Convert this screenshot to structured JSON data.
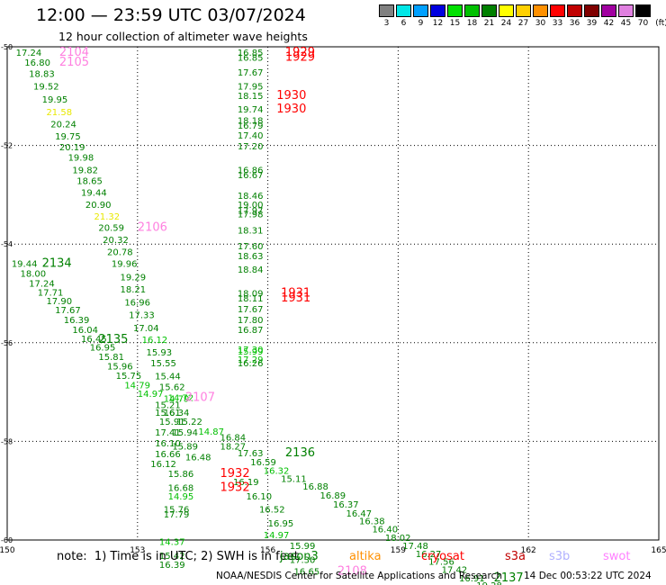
{
  "header": {
    "title": "12:00 — 23:59 UTC 03/07/2024",
    "subtitle": "12 hour collection of altimeter wave heights"
  },
  "legend": {
    "unit": "(ft)",
    "bins": [
      {
        "label": "3",
        "color": "#808080"
      },
      {
        "label": "6",
        "color": "#00e6e6"
      },
      {
        "label": "9",
        "color": "#00a0ff"
      },
      {
        "label": "12",
        "color": "#0000e0"
      },
      {
        "label": "15",
        "color": "#00e000"
      },
      {
        "label": "18",
        "color": "#00c000"
      },
      {
        "label": "21",
        "color": "#008000"
      },
      {
        "label": "24",
        "color": "#ffff00"
      },
      {
        "label": "27",
        "color": "#ffd000"
      },
      {
        "label": "30",
        "color": "#ff9000"
      },
      {
        "label": "33",
        "color": "#ff0000"
      },
      {
        "label": "36",
        "color": "#c00000"
      },
      {
        "label": "39",
        "color": "#800000"
      },
      {
        "label": "42",
        "color": "#a000a0"
      },
      {
        "label": "45",
        "color": "#e080e0"
      },
      {
        "label": "70",
        "color": "#000000"
      }
    ]
  },
  "footer": {
    "note": "note:  1) Time is in UTC; 2) SWH is in feet",
    "satellites": [
      {
        "label": "jason3",
        "color": "#008000"
      },
      {
        "label": "altika",
        "color": "#ff9000"
      },
      {
        "label": "cryosat",
        "color": "#ff0000"
      },
      {
        "label": "s3a",
        "color": "#c00000"
      },
      {
        "label": "s3b",
        "color": "#b0b0ff"
      },
      {
        "label": "swot",
        "color": "#ff80ff"
      }
    ],
    "credit": "NOAA/NESDIS Center for Satellite Applications and Research",
    "timestamp": "14 Dec 00:53:22 UTC 2024"
  },
  "chart_data": {
    "type": "scatter",
    "xlim": [
      150,
      165
    ],
    "ylim": [
      -60,
      -50
    ],
    "xticks": [
      "150",
      "153",
      "156",
      "159",
      "162",
      "165"
    ],
    "yticks": [
      "-50",
      "-52",
      "-54",
      "-56",
      "-58",
      "-60"
    ],
    "grid": true,
    "colors": {
      "g": "#008000",
      "l": "#00c000",
      "y": "#e8e800",
      "r": "#ff0000",
      "p": "#ff80e0"
    },
    "points": [
      {
        "x": 150.2,
        "y": -50.0,
        "v": "17.24",
        "c": "g"
      },
      {
        "x": 151.2,
        "y": -50.0,
        "v": "2104",
        "c": "p"
      },
      {
        "x": 150.4,
        "y": -50.2,
        "v": "16.80",
        "c": "g"
      },
      {
        "x": 151.2,
        "y": -50.2,
        "v": "2105",
        "c": "p"
      },
      {
        "x": 150.5,
        "y": -50.43,
        "v": "18.83",
        "c": "g"
      },
      {
        "x": 150.6,
        "y": -50.68,
        "v": "19.52",
        "c": "g"
      },
      {
        "x": 150.8,
        "y": -50.95,
        "v": "19.95",
        "c": "g"
      },
      {
        "x": 150.9,
        "y": -51.2,
        "v": "21.58",
        "c": "y"
      },
      {
        "x": 151.0,
        "y": -51.45,
        "v": "20.24",
        "c": "g"
      },
      {
        "x": 151.1,
        "y": -51.7,
        "v": "19.75",
        "c": "g"
      },
      {
        "x": 151.2,
        "y": -51.92,
        "v": "20.19",
        "c": "g"
      },
      {
        "x": 151.4,
        "y": -52.13,
        "v": "19.98",
        "c": "g"
      },
      {
        "x": 151.5,
        "y": -52.38,
        "v": "19.82",
        "c": "g"
      },
      {
        "x": 151.6,
        "y": -52.6,
        "v": "18.65",
        "c": "g"
      },
      {
        "x": 151.7,
        "y": -52.84,
        "v": "19.44",
        "c": "g"
      },
      {
        "x": 151.8,
        "y": -53.08,
        "v": "20.90",
        "c": "g"
      },
      {
        "x": 152.0,
        "y": -53.32,
        "v": "21.32",
        "c": "y"
      },
      {
        "x": 152.1,
        "y": -53.55,
        "v": "20.59",
        "c": "g"
      },
      {
        "x": 153.0,
        "y": -53.55,
        "v": "2106",
        "c": "p"
      },
      {
        "x": 152.2,
        "y": -53.8,
        "v": "20.32",
        "c": "g"
      },
      {
        "x": 152.3,
        "y": -54.04,
        "v": "20.78",
        "c": "g"
      },
      {
        "x": 152.4,
        "y": -54.28,
        "v": "19.96",
        "c": "g"
      },
      {
        "x": 152.6,
        "y": -54.55,
        "v": "19.29",
        "c": "g"
      },
      {
        "x": 152.6,
        "y": -54.8,
        "v": "18.21",
        "c": "g"
      },
      {
        "x": 152.7,
        "y": -55.06,
        "v": "16.96",
        "c": "g"
      },
      {
        "x": 152.8,
        "y": -55.32,
        "v": "17.33",
        "c": "g"
      },
      {
        "x": 152.9,
        "y": -55.58,
        "v": "17.04",
        "c": "g"
      },
      {
        "x": 153.1,
        "y": -55.82,
        "v": "16.12",
        "c": "l"
      },
      {
        "x": 152.1,
        "y": -55.82,
        "v": "2135",
        "c": "g"
      },
      {
        "x": 153.2,
        "y": -56.08,
        "v": "15.93",
        "c": "g"
      },
      {
        "x": 153.3,
        "y": -56.3,
        "v": "15.55",
        "c": "g"
      },
      {
        "x": 153.4,
        "y": -56.56,
        "v": "15.44",
        "c": "g"
      },
      {
        "x": 153.5,
        "y": -56.78,
        "v": "15.62",
        "c": "g"
      },
      {
        "x": 153.6,
        "y": -57.02,
        "v": "14.79",
        "c": "l"
      },
      {
        "x": 150.1,
        "y": -54.28,
        "v": "19.44",
        "c": "g"
      },
      {
        "x": 150.8,
        "y": -54.28,
        "v": "2134",
        "c": "g"
      },
      {
        "x": 150.3,
        "y": -54.48,
        "v": "18.00",
        "c": "g"
      },
      {
        "x": 150.5,
        "y": -54.68,
        "v": "17.24",
        "c": "g"
      },
      {
        "x": 150.7,
        "y": -54.86,
        "v": "17.71",
        "c": "g"
      },
      {
        "x": 150.9,
        "y": -55.04,
        "v": "17.90",
        "c": "g"
      },
      {
        "x": 151.1,
        "y": -55.22,
        "v": "17.67",
        "c": "g"
      },
      {
        "x": 151.3,
        "y": -55.42,
        "v": "16.39",
        "c": "g"
      },
      {
        "x": 151.5,
        "y": -55.62,
        "v": "16.04",
        "c": "g"
      },
      {
        "x": 151.7,
        "y": -55.8,
        "v": "16.45",
        "c": "g"
      },
      {
        "x": 151.9,
        "y": -55.98,
        "v": "16.95",
        "c": "g"
      },
      {
        "x": 152.1,
        "y": -56.17,
        "v": "15.81",
        "c": "g"
      },
      {
        "x": 152.3,
        "y": -56.36,
        "v": "15.96",
        "c": "g"
      },
      {
        "x": 152.5,
        "y": -56.55,
        "v": "15.75",
        "c": "g"
      },
      {
        "x": 152.7,
        "y": -56.74,
        "v": "14.79",
        "c": "l"
      },
      {
        "x": 153.0,
        "y": -56.92,
        "v": "14.97",
        "c": "l"
      },
      {
        "x": 153.4,
        "y": -57.14,
        "v": "15.21",
        "c": "g"
      },
      {
        "x": 153.6,
        "y": -57.3,
        "v": "16.34",
        "c": "g"
      },
      {
        "x": 153.4,
        "y": -57.3,
        "v": "15.61",
        "c": "g"
      },
      {
        "x": 153.7,
        "y": -57.0,
        "v": "14.72",
        "c": "l"
      },
      {
        "x": 154.1,
        "y": -57.0,
        "v": "2107",
        "c": "p"
      },
      {
        "x": 153.5,
        "y": -57.48,
        "v": "15.91",
        "c": "g"
      },
      {
        "x": 153.9,
        "y": -57.48,
        "v": "15.22",
        "c": "g"
      },
      {
        "x": 153.4,
        "y": -57.7,
        "v": "17.41",
        "c": "g"
      },
      {
        "x": 153.8,
        "y": -57.7,
        "v": "15.94",
        "c": "g"
      },
      {
        "x": 154.4,
        "y": -57.68,
        "v": "14.87",
        "c": "l"
      },
      {
        "x": 154.9,
        "y": -57.8,
        "v": "16.84",
        "c": "g"
      },
      {
        "x": 153.4,
        "y": -57.92,
        "v": "16.10",
        "c": "g"
      },
      {
        "x": 153.8,
        "y": -57.98,
        "v": "15.89",
        "c": "g"
      },
      {
        "x": 154.9,
        "y": -57.98,
        "v": "18.27",
        "c": "g"
      },
      {
        "x": 153.4,
        "y": -58.14,
        "v": "16.66",
        "c": "g"
      },
      {
        "x": 154.1,
        "y": -58.2,
        "v": "16.48",
        "c": "g"
      },
      {
        "x": 155.3,
        "y": -58.12,
        "v": "17.63",
        "c": "g"
      },
      {
        "x": 156.4,
        "y": -58.12,
        "v": "2136",
        "c": "g"
      },
      {
        "x": 153.3,
        "y": -58.34,
        "v": "16.12",
        "c": "g"
      },
      {
        "x": 155.6,
        "y": -58.3,
        "v": "16.59",
        "c": "g"
      },
      {
        "x": 155.9,
        "y": -58.48,
        "v": "16.32",
        "c": "l"
      },
      {
        "x": 156.3,
        "y": -58.64,
        "v": "15.11",
        "c": "g"
      },
      {
        "x": 156.8,
        "y": -58.8,
        "v": "16.88",
        "c": "g"
      },
      {
        "x": 157.2,
        "y": -58.98,
        "v": "16.89",
        "c": "g"
      },
      {
        "x": 157.5,
        "y": -59.16,
        "v": "16.37",
        "c": "g"
      },
      {
        "x": 157.8,
        "y": -59.34,
        "v": "16.47",
        "c": "g"
      },
      {
        "x": 158.1,
        "y": -59.5,
        "v": "16.38",
        "c": "g"
      },
      {
        "x": 158.4,
        "y": -59.66,
        "v": "16.40",
        "c": "g"
      },
      {
        "x": 158.7,
        "y": -59.84,
        "v": "18.02",
        "c": "g"
      },
      {
        "x": 159.1,
        "y": -60.0,
        "v": "17.48",
        "c": "g"
      },
      {
        "x": 159.4,
        "y": -60.16,
        "v": "16.27",
        "c": "g"
      },
      {
        "x": 159.7,
        "y": -60.32,
        "v": "17.56",
        "c": "g"
      },
      {
        "x": 160.0,
        "y": -60.48,
        "v": "17.42",
        "c": "g"
      },
      {
        "x": 160.4,
        "y": -60.66,
        "v": "16.91",
        "c": "g"
      },
      {
        "x": 160.8,
        "y": -60.8,
        "v": "19.28",
        "c": "g"
      },
      {
        "x": 161.2,
        "y": -60.66,
        "v": "2137",
        "c": "g"
      },
      {
        "x": 155.3,
        "y": -50.0,
        "v": "16.85",
        "c": "g"
      },
      {
        "x": 156.4,
        "y": -50.0,
        "v": "1929",
        "c": "r"
      },
      {
        "x": 155.3,
        "y": -50.1,
        "v": "16.85",
        "c": "g"
      },
      {
        "x": 156.4,
        "y": -50.1,
        "v": "1929",
        "c": "r"
      },
      {
        "x": 155.3,
        "y": -50.4,
        "v": "17.67",
        "c": "g"
      },
      {
        "x": 155.3,
        "y": -50.68,
        "v": "17.95",
        "c": "g"
      },
      {
        "x": 155.3,
        "y": -50.88,
        "v": "18.15",
        "c": "g"
      },
      {
        "x": 156.2,
        "y": -50.88,
        "v": "1930",
        "c": "r"
      },
      {
        "x": 155.3,
        "y": -51.15,
        "v": "19.74",
        "c": "g"
      },
      {
        "x": 156.2,
        "y": -51.15,
        "v": "1930",
        "c": "r"
      },
      {
        "x": 155.3,
        "y": -51.38,
        "v": "18.18",
        "c": "g"
      },
      {
        "x": 155.3,
        "y": -51.48,
        "v": "16.79",
        "c": "g"
      },
      {
        "x": 155.3,
        "y": -51.68,
        "v": "17.40",
        "c": "g"
      },
      {
        "x": 155.3,
        "y": -51.9,
        "v": "17.20",
        "c": "g"
      },
      {
        "x": 155.3,
        "y": -52.38,
        "v": "16.86",
        "c": "g"
      },
      {
        "x": 155.3,
        "y": -52.48,
        "v": "16.67",
        "c": "g"
      },
      {
        "x": 155.3,
        "y": -52.9,
        "v": "18.46",
        "c": "g"
      },
      {
        "x": 155.3,
        "y": -53.08,
        "v": "19.00",
        "c": "g"
      },
      {
        "x": 155.3,
        "y": -53.2,
        "v": "17.97",
        "c": "g"
      },
      {
        "x": 155.3,
        "y": -53.28,
        "v": "17.98",
        "c": "g"
      },
      {
        "x": 155.3,
        "y": -53.6,
        "v": "18.31",
        "c": "g"
      },
      {
        "x": 155.3,
        "y": -53.92,
        "v": "17.60",
        "c": "g"
      },
      {
        "x": 155.3,
        "y": -54.12,
        "v": "18.63",
        "c": "g"
      },
      {
        "x": 155.3,
        "y": -54.4,
        "v": "18.84",
        "c": "g"
      },
      {
        "x": 155.3,
        "y": -54.88,
        "v": "18.09",
        "c": "g"
      },
      {
        "x": 155.3,
        "y": -54.98,
        "v": "18.11",
        "c": "g"
      },
      {
        "x": 156.3,
        "y": -54.88,
        "v": "1931",
        "c": "r"
      },
      {
        "x": 156.3,
        "y": -54.98,
        "v": "1931",
        "c": "r"
      },
      {
        "x": 155.3,
        "y": -55.2,
        "v": "17.67",
        "c": "g"
      },
      {
        "x": 155.3,
        "y": -55.42,
        "v": "17.80",
        "c": "g"
      },
      {
        "x": 155.3,
        "y": -55.62,
        "v": "16.87",
        "c": "g"
      },
      {
        "x": 155.3,
        "y": -56.02,
        "v": "17.30",
        "c": "l"
      },
      {
        "x": 155.3,
        "y": -56.22,
        "v": "17.29",
        "c": "l"
      },
      {
        "x": 155.3,
        "y": -56.3,
        "v": "16.26",
        "c": "g"
      },
      {
        "x": 155.3,
        "y": -56.06,
        "v": "15.99",
        "c": "l"
      },
      {
        "x": 153.7,
        "y": -58.54,
        "v": "15.86",
        "c": "g"
      },
      {
        "x": 154.9,
        "y": -58.54,
        "v": "1932",
        "c": "r"
      },
      {
        "x": 155.2,
        "y": -58.7,
        "v": "16.19",
        "c": "g"
      },
      {
        "x": 153.7,
        "y": -58.82,
        "v": "16.68",
        "c": "g"
      },
      {
        "x": 154.9,
        "y": -58.82,
        "v": "1932",
        "c": "r"
      },
      {
        "x": 153.7,
        "y": -59.0,
        "v": "14.95",
        "c": "l"
      },
      {
        "x": 155.5,
        "y": -59.0,
        "v": "16.10",
        "c": "g"
      },
      {
        "x": 153.6,
        "y": -59.26,
        "v": "15.76",
        "c": "g"
      },
      {
        "x": 153.6,
        "y": -59.36,
        "v": "17.79",
        "c": "g"
      },
      {
        "x": 155.8,
        "y": -59.26,
        "v": "16.52",
        "c": "g"
      },
      {
        "x": 156.0,
        "y": -59.54,
        "v": "16.95",
        "c": "g"
      },
      {
        "x": 155.9,
        "y": -59.78,
        "v": "14.97",
        "c": "l"
      },
      {
        "x": 153.5,
        "y": -59.92,
        "v": "14.37",
        "c": "l"
      },
      {
        "x": 153.5,
        "y": -60.2,
        "v": "15.42",
        "c": "g"
      },
      {
        "x": 153.5,
        "y": -60.38,
        "v": "16.39",
        "c": "g"
      },
      {
        "x": 156.5,
        "y": -60.0,
        "v": "15.99",
        "c": "g"
      },
      {
        "x": 156.5,
        "y": -60.28,
        "v": "17.30",
        "c": "g"
      },
      {
        "x": 156.6,
        "y": -60.52,
        "v": "16.65",
        "c": "g"
      },
      {
        "x": 157.6,
        "y": -60.52,
        "v": "2108",
        "c": "p"
      }
    ]
  }
}
